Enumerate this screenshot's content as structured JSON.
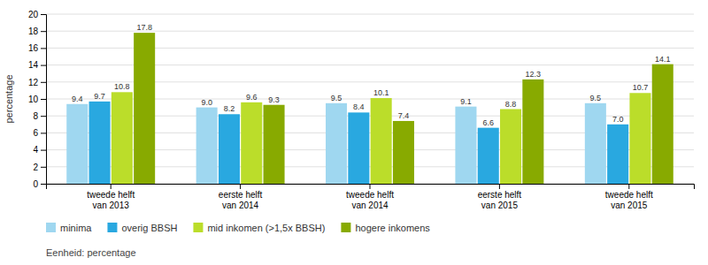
{
  "chart_data": {
    "type": "bar",
    "categories": [
      "tweede helft\nvan 2013",
      "eerste helft\nvan 2014",
      "tweede helft\nvan 2014",
      "eerste helft\nvan 2015",
      "tweede helft\nvan 2015"
    ],
    "series": [
      {
        "name": "minima",
        "color": "#9FD7F0",
        "values": [
          9.4,
          9.0,
          9.5,
          9.1,
          9.5
        ],
        "value_labels": [
          "9.4",
          "9.0",
          "9.5",
          "9.1",
          "9.5"
        ]
      },
      {
        "name": "overig BBSH",
        "color": "#29A8E0",
        "values": [
          9.7,
          8.2,
          8.4,
          6.6,
          7.0
        ],
        "value_labels": [
          "9.7",
          "8.2",
          "8.4",
          "6.6",
          "7.0"
        ]
      },
      {
        "name": "mid inkomen (>1,5x BBSH)",
        "color": "#BBDD2A",
        "values": [
          10.8,
          9.6,
          10.1,
          8.8,
          10.7
        ],
        "value_labels": [
          "10.8",
          "9.6",
          "10.1",
          "8.8",
          "10.7"
        ]
      },
      {
        "name": "hogere inkomens",
        "color": "#88AA00",
        "values": [
          17.8,
          9.3,
          7.4,
          12.3,
          14.1
        ],
        "value_labels": [
          "17.8",
          "9.3",
          "7.4",
          "12.3",
          "14.1"
        ]
      }
    ],
    "ylabel": "percentage",
    "ylim": [
      0,
      20
    ],
    "yticks": [
      0,
      2,
      4,
      6,
      8,
      10,
      12,
      14,
      16,
      18,
      20
    ],
    "grid": true,
    "legend": "bottom",
    "data_labels": true,
    "footnote": "Eenheid: percentage"
  }
}
